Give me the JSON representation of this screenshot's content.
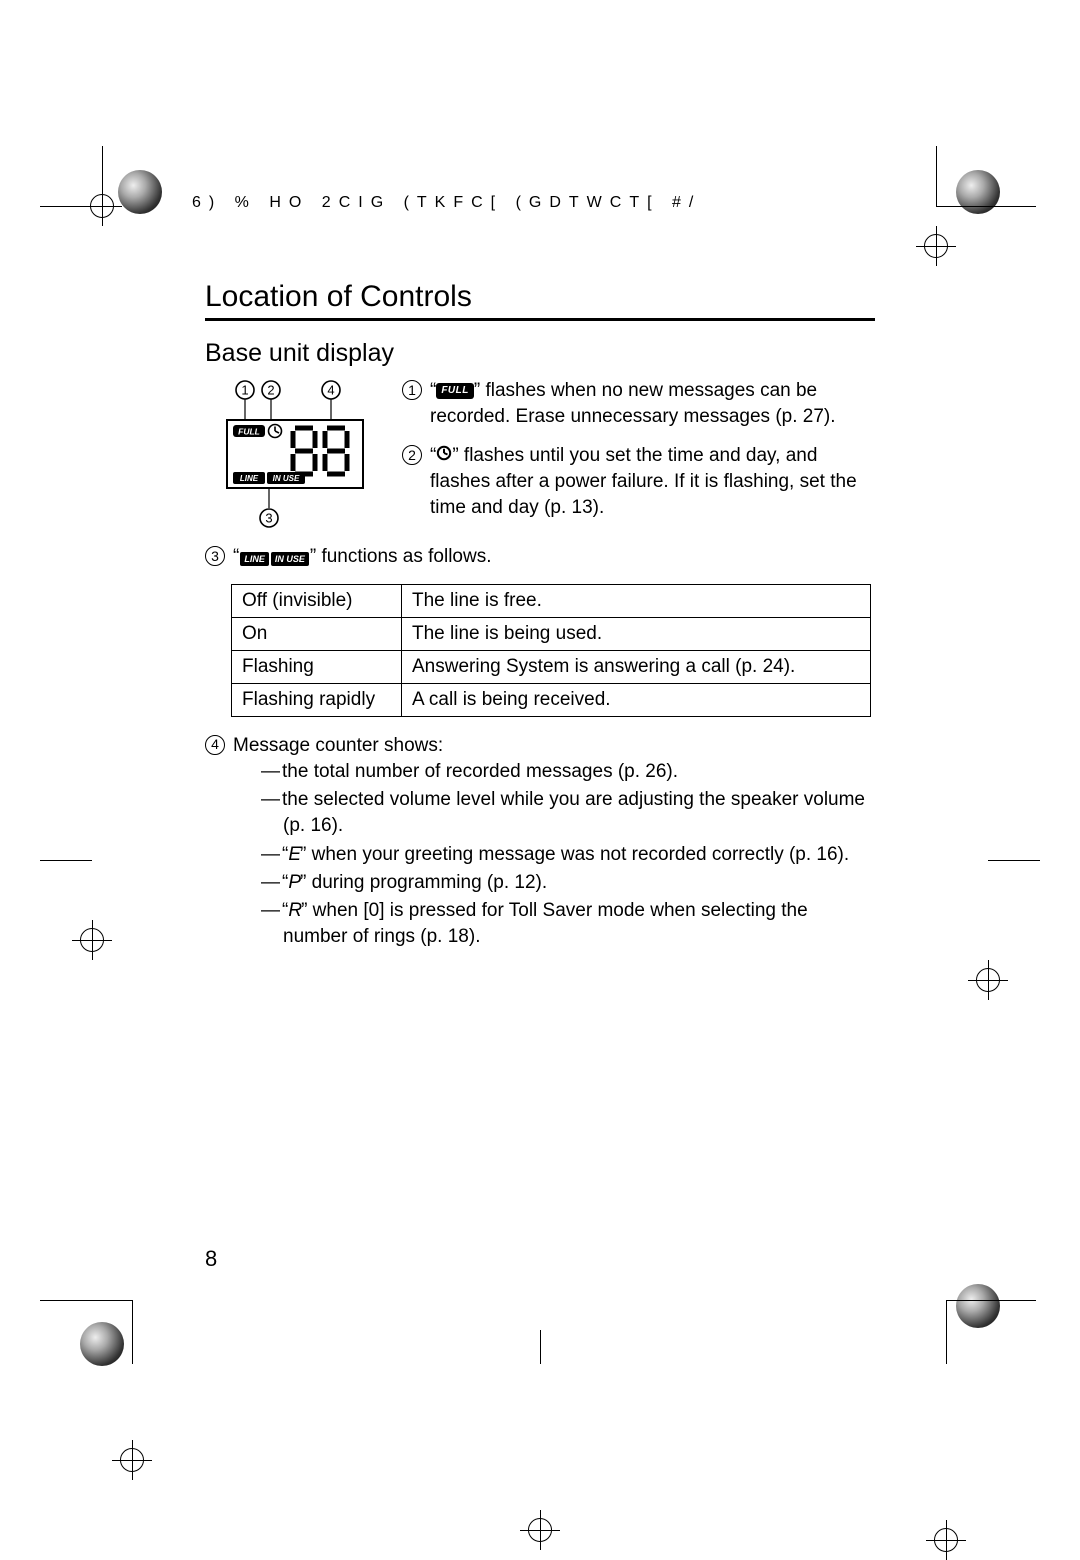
{
  "header_text": "6)  % HO 2CIG  (TKFC[ (GDTWCT[        #/",
  "section_title": "Location of Controls",
  "subsection_title": "Base unit display",
  "diagram": {
    "full_label": "FULL",
    "line_label": "LINE",
    "inuse_label": "IN USE",
    "digits": "88",
    "callout_labels": [
      "1",
      "2",
      "3",
      "4"
    ]
  },
  "callouts": {
    "c1": {
      "num": "1",
      "icon_text": "FULL",
      "text_before": "“",
      "text_after": "” flashes when no new messages can be recorded. Erase unnecessary messages (p. 27)."
    },
    "c2": {
      "num": "2",
      "clock_glyph": "🕘",
      "text_before": "“",
      "text_after": "” flashes until you set the time and day, and flashes after a power failure. If it is flashing, set the time and day (p. 13)."
    },
    "c3": {
      "num": "3",
      "text_before": "“",
      "text_after": "” functions as follows.",
      "line_label": "LINE",
      "inuse_label": "IN USE"
    },
    "c4": {
      "num": "4",
      "lead": "Message counter shows:"
    }
  },
  "line_table": {
    "rows": [
      [
        "Off (invisible)",
        "The line is free."
      ],
      [
        "On",
        "The line is being used."
      ],
      [
        "Flashing",
        "Answering System is answering a call (p. 24)."
      ],
      [
        "Flashing rapidly",
        "A call is being received."
      ]
    ]
  },
  "counter_list": {
    "i1": "the total number of recorded messages (p. 26).",
    "i2": "the selected volume level while you are adjusting the speaker volume (p. 16).",
    "i3_pre": "“",
    "i3_glyph": "E",
    "i3_post": "” when your greeting message was not recorded correctly (p. 16).",
    "i4_pre": "“",
    "i4_glyph": "P",
    "i4_post": "” during programming (p. 12).",
    "i5_pre": "“",
    "i5_glyph": "R",
    "i5_post": "” when [0] is pressed for Toll Saver mode when selecting the number of rings (p. 18)."
  },
  "page_number": "8",
  "colors": {
    "text": "#000000",
    "bg": "#ffffff"
  }
}
